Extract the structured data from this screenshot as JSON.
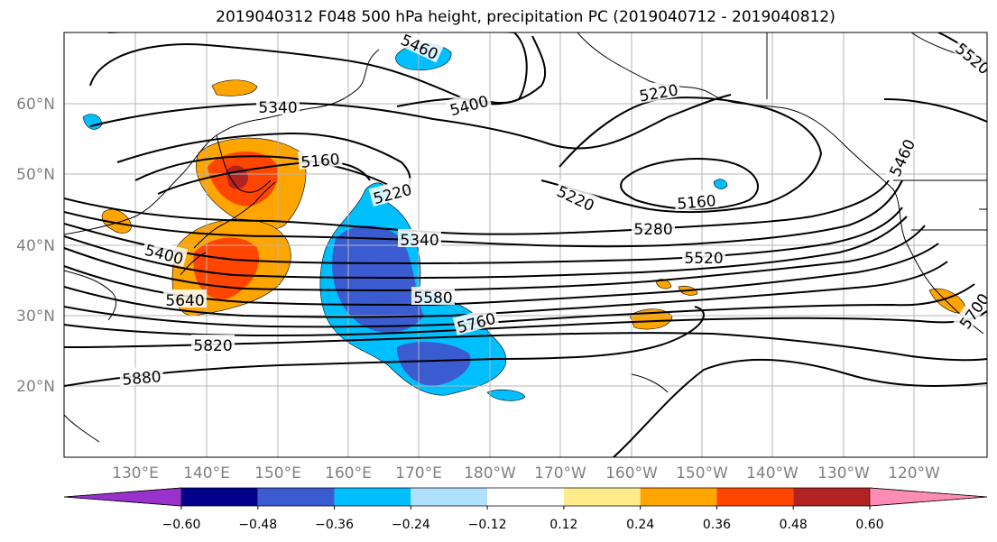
{
  "title": "2019040312 F048 500 hPa height, precipitation PC (2019040712 - 2019040812)",
  "colors": {
    "gridline": "#b4b4b4",
    "tick_label": "#808080",
    "contour": "#000000",
    "land": "#000000"
  },
  "map": {
    "lat_labels": [
      "60°N",
      "50°N",
      "40°N",
      "30°N",
      "20°N"
    ],
    "lon_labels": [
      "130°E",
      "140°E",
      "150°E",
      "160°E",
      "170°E",
      "180°W",
      "170°W",
      "160°W",
      "150°W",
      "140°W",
      "130°W",
      "120°W"
    ],
    "contour_labels": [
      "5460",
      "5400",
      "5220",
      "5340",
      "5160",
      "5220",
      "5340",
      "5220",
      "5160",
      "5280",
      "5520",
      "5400",
      "5580",
      "5640",
      "5760",
      "5820",
      "5880",
      "5460",
      "5700",
      "5520"
    ]
  },
  "colorbar": {
    "colors": [
      "#9932cc",
      "#00008b",
      "#3b5bd0",
      "#00bfff",
      "#b0e0ff",
      "#ffffff",
      "#ffeb8a",
      "#ffa500",
      "#ff4500",
      "#b22222",
      "#ff8cb4"
    ],
    "ticks": [
      "−0.60",
      "−0.48",
      "−0.36",
      "−0.24",
      "−0.12",
      "0.12",
      "0.24",
      "0.36",
      "0.48",
      "0.60"
    ]
  }
}
